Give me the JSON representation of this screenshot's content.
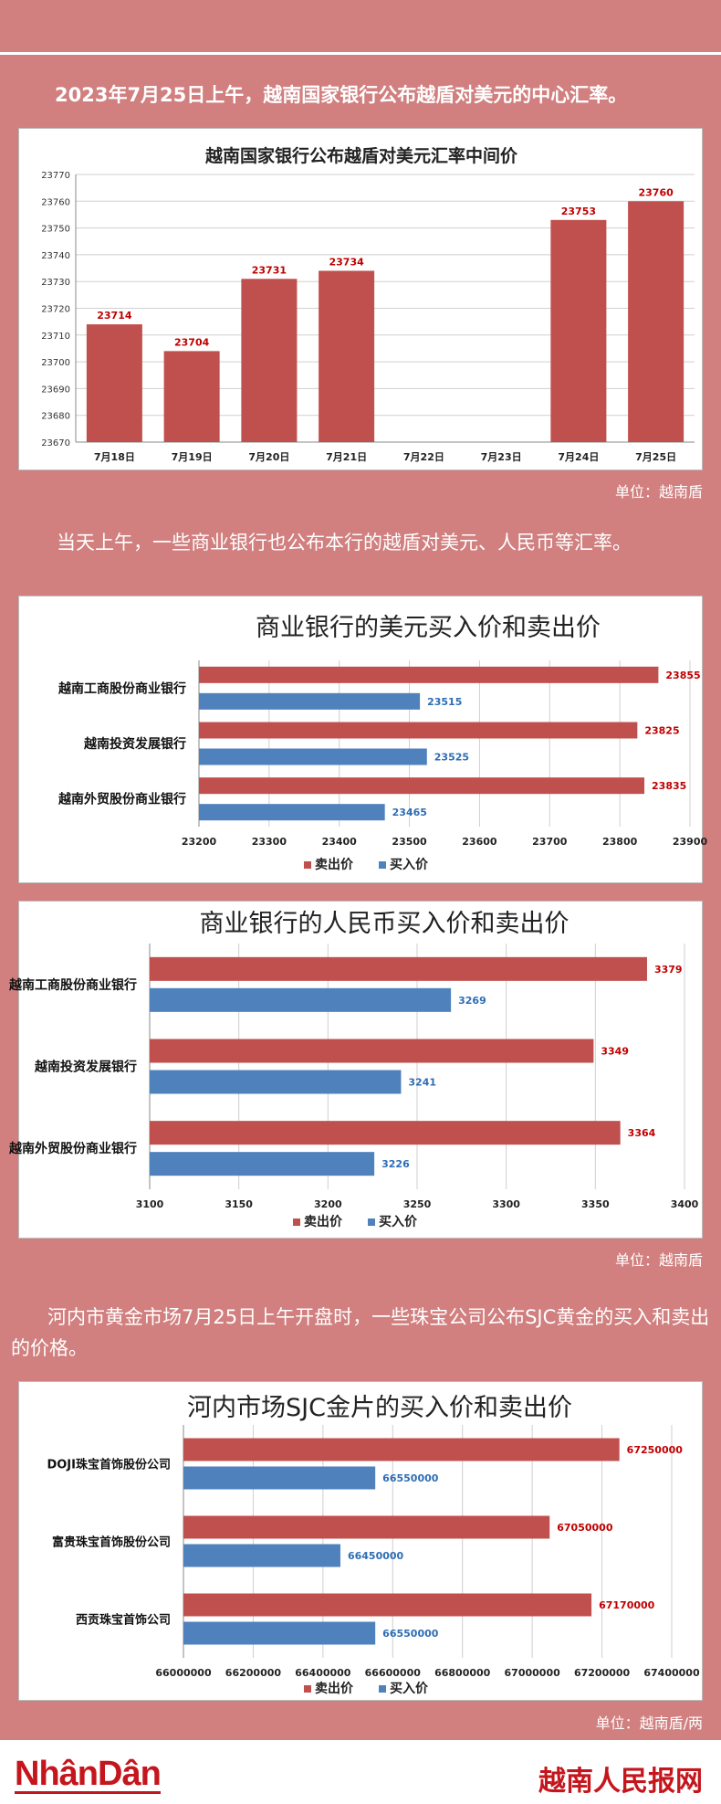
{
  "intro_text": "2023年7月25日上午，越南国家银行公布越盾对美元的中心汇率。",
  "unit1": "单位：越南盾",
  "text2": "当天上午，一些商业银行也公布本行的越盾对美元、人民币等汇率。",
  "unit2": "单位：越南盾",
  "text3": "河内市黄金市场7月25日上午开盘时，一些珠宝公司公布SJC黄金的买入和卖出的价格。",
  "unit3": "单位：越南盾/两",
  "footer": {
    "logo_left": "NhânDân",
    "logo_right": "越南人民报网"
  },
  "colors": {
    "sell": "#c0504d",
    "buy": "#4f81bd",
    "background": "#d17f7f",
    "brand": "#c4161c"
  },
  "chart_data": [
    {
      "type": "bar",
      "title": "越南国家银行公布越盾对美元汇率中间价",
      "categories": [
        "7月18日",
        "7月19日",
        "7月20日",
        "7月21日",
        "7月22日",
        "7月23日",
        "7月24日",
        "7月25日"
      ],
      "values": [
        23714,
        23704,
        23731,
        23734,
        null,
        null,
        23753,
        23760
      ],
      "labels": [
        "23714",
        "23704",
        "23731",
        "23734",
        "",
        "",
        "23753",
        "23760"
      ],
      "ylim": [
        23670,
        23770
      ],
      "yticks": [
        "23670",
        "23680",
        "23690",
        "23700",
        "23710",
        "23720",
        "23730",
        "23740",
        "23750",
        "23760",
        "23770"
      ],
      "grid": true
    },
    {
      "type": "bar",
      "orientation": "horizontal",
      "title": "商业银行的美元买入价和卖出价",
      "categories": [
        "越南工商股份商业银行",
        "越南投资发展银行",
        "越南外贸股份商业银行"
      ],
      "series": [
        {
          "name": "卖出价",
          "values": [
            23855,
            23825,
            23835
          ],
          "labels": [
            "23855",
            "23825",
            "23835"
          ]
        },
        {
          "name": "买入价",
          "values": [
            23515,
            23525,
            23465
          ],
          "labels": [
            "23515",
            "23525",
            "23465"
          ]
        }
      ],
      "xlim": [
        23200,
        23900
      ],
      "xticks": [
        "23200",
        "23300",
        "23400",
        "23500",
        "23600",
        "23700",
        "23800",
        "23900"
      ],
      "legend": "bottom",
      "grid": true
    },
    {
      "type": "bar",
      "orientation": "horizontal",
      "title": "商业银行的人民币买入价和卖出价",
      "categories": [
        "越南工商股份商业银行",
        "越南投资发展银行",
        "越南外贸股份商业银行"
      ],
      "series": [
        {
          "name": "卖出价",
          "values": [
            3379,
            3349,
            3364
          ],
          "labels": [
            "3379",
            "3349",
            "3364"
          ]
        },
        {
          "name": "买入价",
          "values": [
            3269,
            3241,
            3226
          ],
          "labels": [
            "3269",
            "3241",
            "3226"
          ]
        }
      ],
      "xlim": [
        3100,
        3400
      ],
      "xticks": [
        "3100",
        "3150",
        "3200",
        "3250",
        "3300",
        "3350",
        "3400"
      ],
      "legend": "bottom",
      "grid": true
    },
    {
      "type": "bar",
      "orientation": "horizontal",
      "title": "河内市场SJC金片的买入价和卖出价",
      "categories": [
        "DOJI珠宝首饰股份公司",
        "富贵珠宝首饰股份公司",
        "西贡珠宝首饰公司"
      ],
      "series": [
        {
          "name": "卖出价",
          "values": [
            67250000,
            67050000,
            67170000
          ],
          "labels": [
            "67250000",
            "67050000",
            "67170000"
          ]
        },
        {
          "name": "买入价",
          "values": [
            66550000,
            66450000,
            66550000
          ],
          "labels": [
            "66550000",
            "66450000",
            "66550000"
          ]
        }
      ],
      "xlim": [
        66000000,
        67400000
      ],
      "xticks": [
        "66000000",
        "66200000",
        "66400000",
        "66600000",
        "66800000",
        "67000000",
        "67200000",
        "67400000"
      ],
      "legend": "bottom",
      "grid": true
    }
  ]
}
